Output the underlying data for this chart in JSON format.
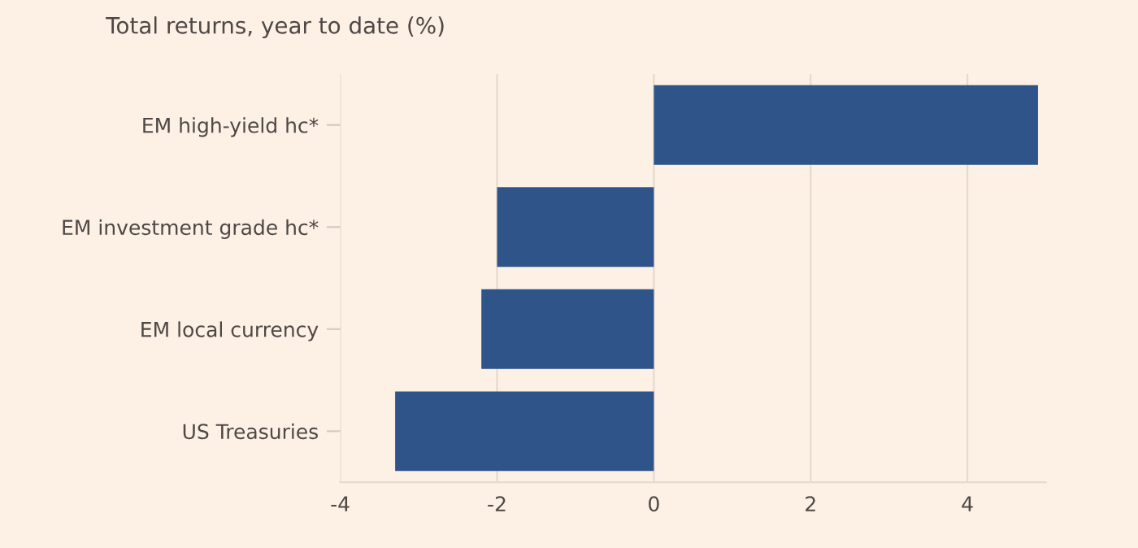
{
  "chart_data": {
    "type": "bar",
    "orientation": "horizontal",
    "title": "Total returns, year to date (%)",
    "categories": [
      "EM high-yield hc*",
      "EM investment grade hc*",
      "EM local currency",
      "US Treasuries"
    ],
    "values": [
      4.9,
      -2.0,
      -2.2,
      -3.3
    ],
    "color": "#2e5489",
    "xlim": [
      -4,
      5
    ],
    "xticks": [
      -4,
      -2,
      0,
      2,
      4
    ],
    "grid": "x",
    "legend": false
  }
}
